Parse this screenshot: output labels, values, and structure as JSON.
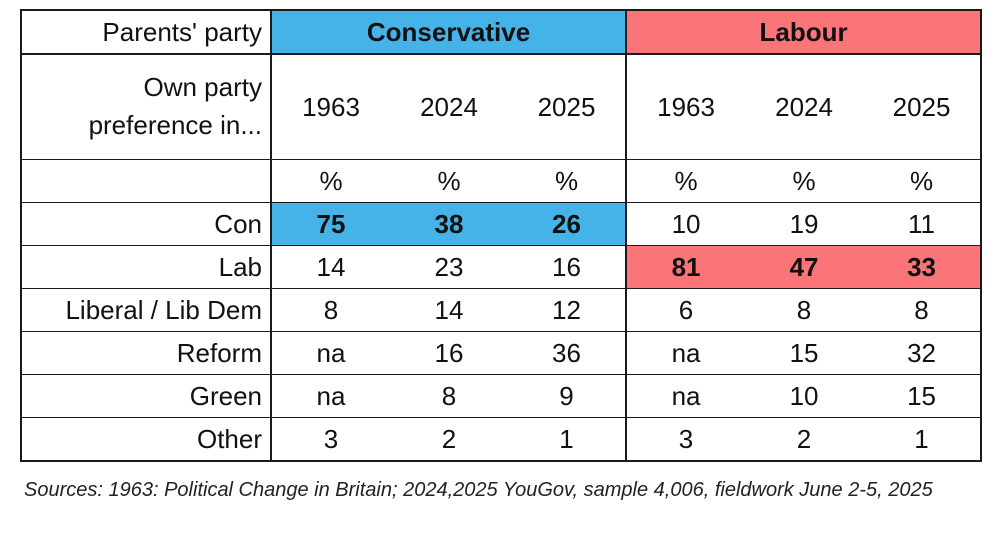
{
  "colors": {
    "conservative": "#45b2e8",
    "labour": "#fa7478",
    "border": "#1a1a1a"
  },
  "header": {
    "parents_party_label": "Parents' party",
    "conservative": "Conservative",
    "labour": "Labour"
  },
  "own_party_label": [
    "Own party",
    "preference in..."
  ],
  "years": [
    "1963",
    "2024",
    "2025",
    "1963",
    "2024",
    "2025"
  ],
  "units": [
    "%",
    "%",
    "%",
    "%",
    "%",
    "%"
  ],
  "rows": [
    {
      "label": "Con",
      "values": [
        "75",
        "38",
        "26",
        "10",
        "19",
        "11"
      ]
    },
    {
      "label": "Lab",
      "values": [
        "14",
        "23",
        "16",
        "81",
        "47",
        "33"
      ]
    },
    {
      "label": "Liberal / Lib Dem",
      "values": [
        "8",
        "14",
        "12",
        "6",
        "8",
        "8"
      ]
    },
    {
      "label": "Reform",
      "values": [
        "na",
        "16",
        "36",
        "na",
        "15",
        "32"
      ]
    },
    {
      "label": "Green",
      "values": [
        "na",
        "8",
        "9",
        "na",
        "10",
        "15"
      ]
    },
    {
      "label": "Other",
      "values": [
        "3",
        "2",
        "1",
        "3",
        "2",
        "1"
      ]
    }
  ],
  "source_note": "Sources: 1963: Political Change in Britain; 2024,2025 YouGov, sample 4,006, fieldwork June 2-5, 2025"
}
